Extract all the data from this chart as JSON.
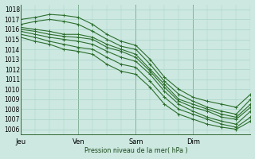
{
  "bg_color": "#cce8e0",
  "grid_color": "#aad4c8",
  "line_color": "#2d6e2d",
  "marker_color": "#2d6e2d",
  "ylabel_ticks": [
    1006,
    1007,
    1008,
    1009,
    1010,
    1011,
    1012,
    1013,
    1014,
    1015,
    1016,
    1017,
    1018
  ],
  "ylim": [
    1005.5,
    1018.5
  ],
  "xlabel": "Pression niveau de la mer( hPa )",
  "day_labels": [
    "Jeu",
    "Ven",
    "Sam",
    "Dim"
  ],
  "day_positions": [
    0,
    24,
    48,
    72
  ],
  "xlim": [
    0,
    96
  ],
  "lines": [
    {
      "x": [
        0,
        6,
        12,
        18,
        24,
        30,
        36,
        42,
        48,
        54,
        60,
        66,
        72,
        78,
        84,
        90,
        96
      ],
      "y": [
        1017.0,
        1017.2,
        1017.5,
        1017.4,
        1017.2,
        1016.5,
        1015.5,
        1014.8,
        1014.4,
        1013.0,
        1011.2,
        1010.0,
        1009.2,
        1008.8,
        1008.5,
        1008.2,
        1009.5
      ]
    },
    {
      "x": [
        0,
        6,
        12,
        18,
        24,
        30,
        36,
        42,
        48,
        54,
        60,
        66,
        72,
        78,
        84,
        90,
        96
      ],
      "y": [
        1016.5,
        1016.8,
        1017.0,
        1016.8,
        1016.5,
        1015.8,
        1015.0,
        1014.3,
        1014.0,
        1012.5,
        1010.8,
        1009.5,
        1008.8,
        1008.2,
        1007.8,
        1007.5,
        1009.0
      ]
    },
    {
      "x": [
        0,
        6,
        12,
        18,
        24,
        30,
        36,
        42,
        48,
        54,
        60,
        66,
        72,
        78,
        84,
        90,
        96
      ],
      "y": [
        1016.2,
        1016.0,
        1015.8,
        1015.5,
        1015.5,
        1015.2,
        1014.5,
        1014.0,
        1013.5,
        1012.0,
        1010.5,
        1009.0,
        1008.5,
        1008.0,
        1007.5,
        1007.2,
        1008.5
      ]
    },
    {
      "x": [
        0,
        6,
        12,
        18,
        24,
        30,
        36,
        42,
        48,
        54,
        60,
        66,
        72,
        78,
        84,
        90,
        96
      ],
      "y": [
        1016.0,
        1015.8,
        1015.5,
        1015.3,
        1015.2,
        1015.0,
        1014.2,
        1013.8,
        1013.2,
        1011.8,
        1010.2,
        1008.8,
        1008.2,
        1007.8,
        1007.2,
        1007.0,
        1008.2
      ]
    },
    {
      "x": [
        0,
        6,
        12,
        18,
        24,
        30,
        36,
        42,
        48,
        54,
        60,
        66,
        72,
        78,
        84,
        90,
        96
      ],
      "y": [
        1015.8,
        1015.5,
        1015.2,
        1015.0,
        1014.8,
        1014.5,
        1013.8,
        1013.2,
        1012.8,
        1011.5,
        1009.8,
        1008.5,
        1007.8,
        1007.2,
        1006.8,
        1006.5,
        1007.8
      ]
    },
    {
      "x": [
        0,
        6,
        12,
        18,
        24,
        30,
        36,
        42,
        48,
        54,
        60,
        66,
        72,
        78,
        84,
        90,
        96
      ],
      "y": [
        1015.5,
        1015.2,
        1014.8,
        1014.5,
        1014.2,
        1014.0,
        1013.2,
        1012.5,
        1012.2,
        1010.8,
        1009.2,
        1008.0,
        1007.5,
        1007.0,
        1006.5,
        1006.2,
        1007.2
      ]
    },
    {
      "x": [
        0,
        6,
        12,
        18,
        24,
        30,
        36,
        42,
        48,
        54,
        60,
        66,
        72,
        78,
        84,
        90,
        96
      ],
      "y": [
        1015.2,
        1014.8,
        1014.5,
        1014.0,
        1013.8,
        1013.5,
        1012.5,
        1011.8,
        1011.5,
        1010.2,
        1008.5,
        1007.5,
        1007.0,
        1006.5,
        1006.2,
        1006.0,
        1006.8
      ]
    }
  ]
}
